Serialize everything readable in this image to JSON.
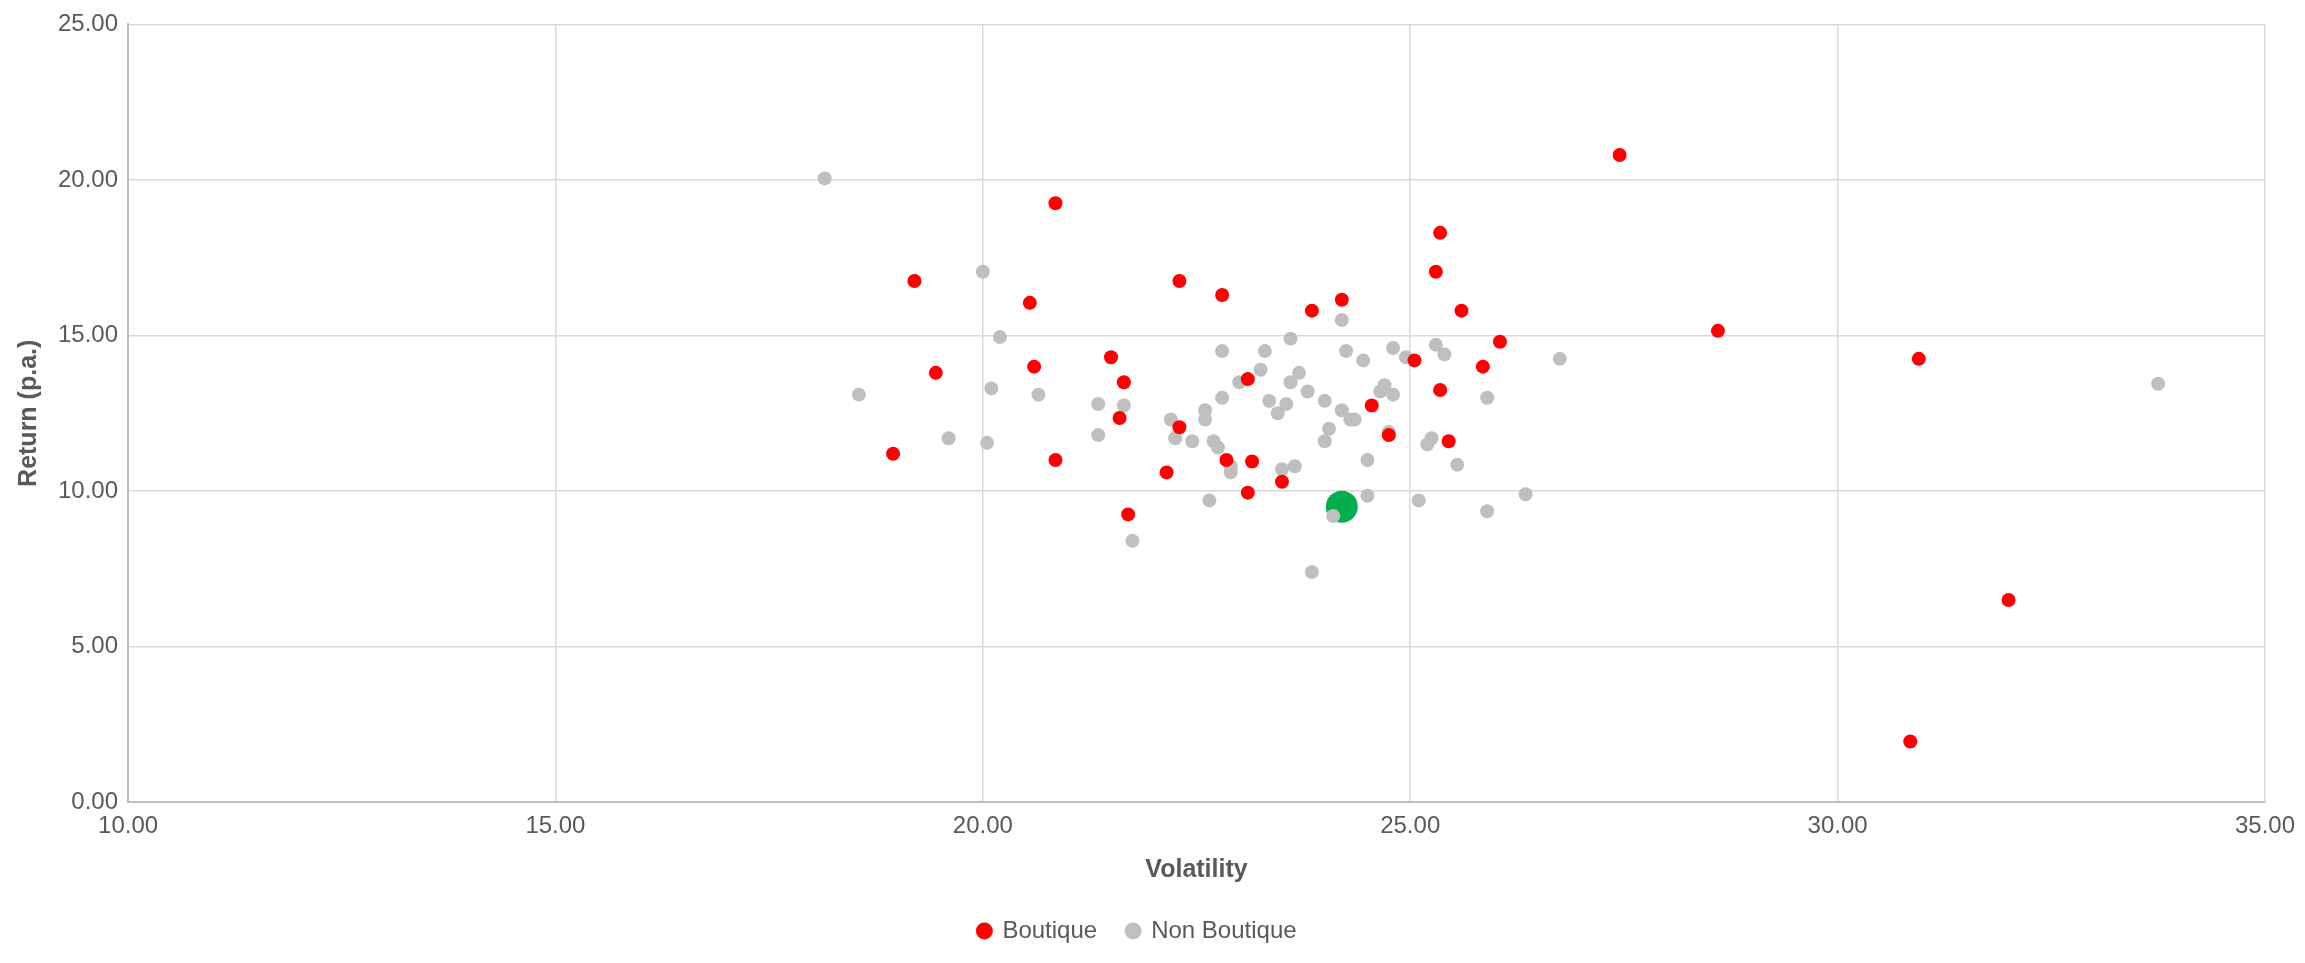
{
  "chart_data": {
    "type": "scatter",
    "xlabel": "Volatility",
    "ylabel": "Return (p.a.)",
    "xlim": [
      10,
      35
    ],
    "xticks": [
      {
        "value": 10,
        "label": "10.00"
      },
      {
        "value": 15,
        "label": "15.00"
      },
      {
        "value": 20,
        "label": "20.00"
      },
      {
        "value": 25,
        "label": "25.00"
      },
      {
        "value": 30,
        "label": "30.00"
      },
      {
        "value": 35,
        "label": "35.00"
      }
    ],
    "ylim": [
      0,
      25
    ],
    "yticks": [
      {
        "value": 0,
        "label": "0.00"
      },
      {
        "value": 5,
        "label": "5.00"
      },
      {
        "value": 10,
        "label": "10.00"
      },
      {
        "value": 15,
        "label": "15.00"
      },
      {
        "value": 20,
        "label": "20.00"
      },
      {
        "value": 25,
        "label": "25.00"
      }
    ],
    "grid": true,
    "legend": "bottom",
    "marker": "circle",
    "series": [
      {
        "name": "Boutique",
        "color": "#ff0000",
        "x": [
          18.95,
          19.2,
          19.45,
          20.55,
          20.6,
          20.85,
          20.85,
          21.5,
          21.65,
          21.6,
          21.7,
          22.15,
          22.3,
          22.3,
          22.8,
          22.85,
          23.1,
          23.15,
          23.1,
          23.5,
          23.85,
          24.2,
          24.55,
          24.75,
          25.05,
          25.3,
          25.35,
          25.35,
          25.45,
          25.6,
          25.85,
          26.05,
          27.45,
          28.6,
          30.85,
          30.95,
          32.0
        ],
        "values": [
          11.2,
          16.75,
          13.8,
          16.05,
          14.0,
          19.25,
          11.0,
          14.3,
          13.5,
          12.35,
          9.25,
          10.6,
          16.75,
          12.05,
          16.3,
          11.0,
          13.6,
          10.95,
          9.95,
          10.3,
          15.8,
          16.15,
          12.75,
          11.8,
          14.2,
          17.05,
          18.3,
          13.25,
          11.6,
          15.8,
          14.0,
          14.8,
          20.8,
          15.15,
          1.95,
          14.25,
          6.5
        ]
      },
      {
        "name": "Non Boutique",
        "color": "#bfbfbf",
        "x": [
          18.15,
          18.55,
          19.6,
          20.0,
          20.1,
          20.05,
          20.2,
          20.65,
          21.35,
          21.35,
          21.65,
          21.75,
          22.2,
          22.25,
          22.45,
          22.6,
          22.6,
          22.65,
          22.7,
          22.75,
          22.8,
          22.8,
          22.9,
          22.9,
          23.0,
          23.25,
          23.3,
          23.35,
          23.45,
          23.55,
          23.6,
          23.6,
          23.7,
          23.5,
          23.65,
          23.85,
          23.8,
          24.0,
          24.0,
          24.05,
          24.2,
          24.25,
          24.2,
          24.3,
          24.35,
          24.45,
          24.5,
          24.5,
          24.1,
          24.65,
          24.7,
          24.8,
          24.8,
          24.75,
          24.95,
          25.1,
          25.2,
          25.25,
          25.3,
          25.4,
          25.55,
          25.9,
          25.9,
          26.35,
          26.75,
          33.75
        ],
        "values": [
          20.05,
          13.1,
          11.7,
          17.05,
          13.3,
          11.55,
          14.95,
          13.1,
          12.8,
          11.8,
          12.75,
          8.4,
          12.3,
          11.7,
          11.6,
          12.6,
          12.3,
          9.7,
          11.6,
          11.4,
          14.5,
          13.0,
          10.8,
          10.6,
          13.5,
          13.9,
          14.5,
          12.9,
          12.5,
          12.8,
          14.9,
          13.5,
          13.8,
          10.7,
          10.8,
          7.4,
          13.2,
          12.9,
          11.6,
          12.0,
          15.5,
          14.5,
          12.6,
          12.3,
          12.3,
          14.2,
          11.0,
          9.85,
          9.2,
          13.2,
          13.4,
          14.6,
          13.1,
          11.9,
          14.3,
          9.7,
          11.5,
          11.7,
          14.7,
          14.4,
          10.85,
          13.0,
          9.35,
          9.9,
          14.25,
          13.45
        ]
      },
      {
        "color": "#00b050",
        "x": [
          24.2
        ],
        "values": [
          9.5
        ]
      }
    ]
  }
}
